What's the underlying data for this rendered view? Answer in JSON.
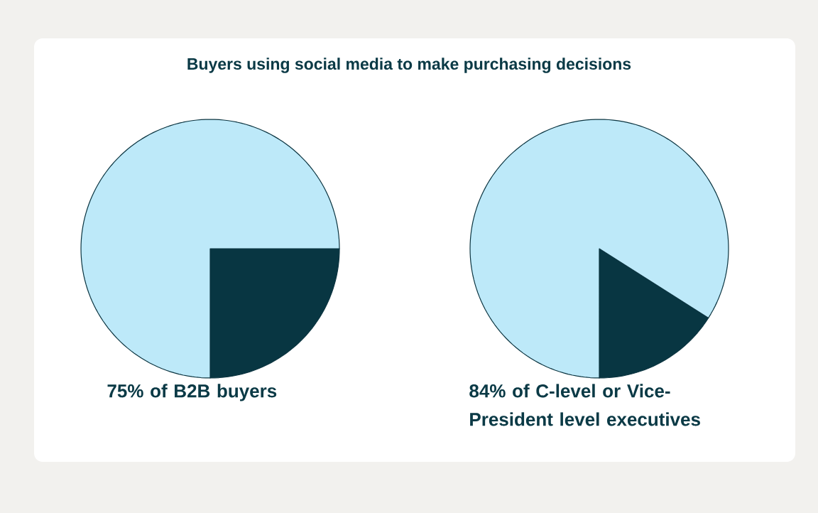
{
  "chart_data": [
    {
      "type": "pie",
      "title": "Buyers using social media to make purchasing decisions",
      "xlabel": "75% of B2B buyers",
      "categories": [
        null,
        null
      ],
      "values": [
        25,
        75
      ],
      "colors": [
        "#083642",
        "#bde9f9"
      ]
    },
    {
      "type": "pie",
      "xlabel": "84% of C-level or Vice-President level executives",
      "categories": [
        null,
        null
      ],
      "values": [
        16,
        84
      ],
      "colors": [
        "#083642",
        "#bde9f9"
      ]
    }
  ]
}
